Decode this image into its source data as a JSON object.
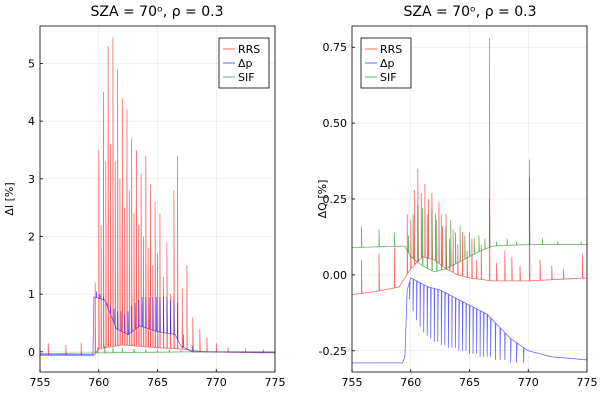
{
  "chart_data": [
    {
      "type": "line",
      "title": "SZA = 70ᵒ, ρ = 0.3",
      "xlabel": "",
      "ylabel": "ΔI [%]",
      "xlim": [
        755,
        775
      ],
      "ylim": [
        -0.35,
        5.65
      ],
      "xticks": [
        "755",
        "760",
        "765",
        "770",
        "775"
      ],
      "yticks": [
        "0",
        "1",
        "2",
        "3",
        "4",
        "5"
      ],
      "legend_position": "top-right",
      "series": [
        {
          "name": "RRS",
          "color": "#ff0000",
          "baseline": [
            [
              755,
              -0.06
            ],
            [
              759.6,
              -0.06
            ],
            [
              760,
              0.05
            ],
            [
              762,
              0.12
            ],
            [
              765,
              0.07
            ],
            [
              767,
              0.05
            ],
            [
              769,
              0.0
            ],
            [
              775,
              -0.02
            ]
          ],
          "peaks": [
            [
              755.7,
              0.15
            ],
            [
              757.2,
              0.12
            ],
            [
              758.5,
              0.16
            ],
            [
              759.7,
              1.2
            ],
            [
              760.0,
              3.5
            ],
            [
              760.2,
              2.2
            ],
            [
              760.4,
              4.5
            ],
            [
              760.6,
              3.3
            ],
            [
              760.8,
              5.3
            ],
            [
              761.0,
              3.6
            ],
            [
              761.2,
              5.45
            ],
            [
              761.4,
              3.3
            ],
            [
              761.6,
              4.9
            ],
            [
              761.8,
              3.0
            ],
            [
              762.0,
              4.4
            ],
            [
              762.2,
              2.5
            ],
            [
              762.4,
              4.2
            ],
            [
              762.6,
              2.8
            ],
            [
              762.8,
              3.7
            ],
            [
              763.0,
              2.4
            ],
            [
              763.2,
              3.5
            ],
            [
              763.4,
              2.2
            ],
            [
              763.6,
              3.1
            ],
            [
              763.8,
              2.0
            ],
            [
              764.0,
              3.4
            ],
            [
              764.2,
              1.8
            ],
            [
              764.4,
              2.9
            ],
            [
              764.6,
              1.5
            ],
            [
              764.8,
              2.6
            ],
            [
              765.0,
              1.7
            ],
            [
              765.2,
              2.4
            ],
            [
              765.5,
              1.3
            ],
            [
              765.8,
              1.9
            ],
            [
              766.1,
              1.0
            ],
            [
              766.4,
              2.8
            ],
            [
              766.7,
              3.4
            ],
            [
              767.1,
              1.1
            ],
            [
              767.5,
              1.5
            ],
            [
              768.0,
              0.6
            ],
            [
              768.6,
              0.4
            ],
            [
              769.2,
              0.25
            ],
            [
              770.0,
              0.15
            ],
            [
              771.0,
              0.08
            ],
            [
              772.5,
              0.05
            ],
            [
              774.0,
              0.04
            ]
          ]
        },
        {
          "name": "Δp",
          "color": "#0000ff",
          "baseline": [
            [
              755,
              -0.05
            ],
            [
              759.5,
              -0.05
            ],
            [
              759.6,
              0.95
            ],
            [
              760.5,
              0.9
            ],
            [
              761.5,
              0.4
            ],
            [
              762.5,
              0.3
            ],
            [
              763.5,
              0.45
            ],
            [
              765,
              0.35
            ],
            [
              766.5,
              0.3
            ],
            [
              767.0,
              0.1
            ],
            [
              768,
              0.0
            ],
            [
              775,
              -0.01
            ]
          ],
          "peaks": [
            [
              759.8,
              1.05
            ],
            [
              760.1,
              1.0
            ],
            [
              760.4,
              0.95
            ],
            [
              760.7,
              0.85
            ],
            [
              761.0,
              0.8
            ],
            [
              761.3,
              0.75
            ],
            [
              761.6,
              0.7
            ],
            [
              761.9,
              0.7
            ],
            [
              762.2,
              0.65
            ],
            [
              762.5,
              0.7
            ],
            [
              762.8,
              0.8
            ],
            [
              763.1,
              0.85
            ],
            [
              763.4,
              0.9
            ],
            [
              763.7,
              0.95
            ],
            [
              764.0,
              0.95
            ],
            [
              764.3,
              0.95
            ],
            [
              764.6,
              0.95
            ],
            [
              764.9,
              0.95
            ],
            [
              765.2,
              0.95
            ],
            [
              765.5,
              0.95
            ],
            [
              765.8,
              0.95
            ],
            [
              766.1,
              0.9
            ],
            [
              766.4,
              0.9
            ],
            [
              766.7,
              0.85
            ],
            [
              767.2,
              0.3
            ],
            [
              768.0,
              0.1
            ]
          ]
        },
        {
          "name": "SIF",
          "color": "#008000",
          "baseline": [
            [
              755,
              -0.03
            ],
            [
              759.5,
              -0.02
            ],
            [
              768,
              0.0
            ],
            [
              775,
              0.0
            ]
          ],
          "peaks": [
            [
              759.9,
              0.08
            ],
            [
              760.5,
              0.1
            ],
            [
              761.2,
              0.08
            ],
            [
              762.0,
              0.07
            ],
            [
              763.0,
              0.05
            ],
            [
              764.0,
              0.05
            ],
            [
              765.0,
              0.04
            ],
            [
              766.0,
              0.04
            ],
            [
              767.0,
              0.03
            ]
          ]
        }
      ]
    },
    {
      "type": "line",
      "title": "SZA = 70ᵒ, ρ = 0.3",
      "xlabel": "",
      "ylabel": "ΔQ [%]",
      "xlim": [
        755,
        775
      ],
      "ylim": [
        -0.32,
        0.82
      ],
      "xticks": [
        "755",
        "760",
        "765",
        "770",
        "775"
      ],
      "yticks": [
        "-0.25",
        "0.00",
        "0.25",
        "0.50",
        "0.75"
      ],
      "legend_position": "top-left",
      "series": [
        {
          "name": "RRS",
          "color": "#ff0000",
          "baseline": [
            [
              755,
              -0.065
            ],
            [
              757,
              -0.055
            ],
            [
              759,
              -0.04
            ],
            [
              760,
              0.02
            ],
            [
              761,
              0.06
            ],
            [
              762,
              0.05
            ],
            [
              763,
              0.02
            ],
            [
              764,
              0.0
            ],
            [
              765,
              -0.01
            ],
            [
              767,
              -0.02
            ],
            [
              770,
              -0.02
            ],
            [
              775,
              -0.01
            ]
          ],
          "peaks": [
            [
              755.8,
              0.05
            ],
            [
              757.3,
              0.07
            ],
            [
              758.6,
              0.09
            ],
            [
              759.7,
              0.2
            ],
            [
              760.0,
              0.18
            ],
            [
              760.3,
              0.28
            ],
            [
              760.6,
              0.35
            ],
            [
              760.9,
              0.27
            ],
            [
              761.2,
              0.3
            ],
            [
              761.5,
              0.25
            ],
            [
              761.8,
              0.27
            ],
            [
              762.1,
              0.2
            ],
            [
              762.4,
              0.24
            ],
            [
              762.7,
              0.16
            ],
            [
              763.0,
              0.2
            ],
            [
              763.3,
              0.12
            ],
            [
              763.6,
              0.15
            ],
            [
              764.0,
              0.1
            ],
            [
              764.4,
              0.14
            ],
            [
              764.8,
              0.08
            ],
            [
              765.2,
              0.12
            ],
            [
              765.6,
              0.05
            ],
            [
              766.0,
              0.1
            ],
            [
              766.7,
              0.78
            ],
            [
              767.3,
              0.04
            ],
            [
              768.0,
              0.08
            ],
            [
              768.6,
              0.06
            ],
            [
              769.3,
              0.03
            ],
            [
              770.1,
              0.32
            ],
            [
              771.0,
              0.05
            ],
            [
              772.0,
              0.03
            ],
            [
              773.0,
              0.02
            ],
            [
              774.6,
              0.07
            ]
          ]
        },
        {
          "name": "Δp",
          "color": "#0000ff",
          "baseline": [
            [
              755,
              -0.29
            ],
            [
              759.3,
              -0.29
            ],
            [
              759.5,
              -0.27
            ],
            [
              759.7,
              -0.05
            ],
            [
              760.0,
              -0.01
            ],
            [
              760.5,
              -0.02
            ],
            [
              761.5,
              -0.04
            ],
            [
              762.5,
              -0.05
            ],
            [
              763.5,
              -0.07
            ],
            [
              764.5,
              -0.09
            ],
            [
              765.5,
              -0.11
            ],
            [
              766.5,
              -0.13
            ],
            [
              767.5,
              -0.17
            ],
            [
              768.5,
              -0.21
            ],
            [
              770,
              -0.25
            ],
            [
              772,
              -0.27
            ],
            [
              775,
              -0.28
            ]
          ],
          "peaks": [
            [
              759.9,
              -0.08
            ],
            [
              760.2,
              -0.12
            ],
            [
              760.5,
              -0.15
            ],
            [
              760.8,
              -0.17
            ],
            [
              761.1,
              -0.19
            ],
            [
              761.4,
              -0.2
            ],
            [
              761.7,
              -0.21
            ],
            [
              762.0,
              -0.22
            ],
            [
              762.3,
              -0.22
            ],
            [
              762.6,
              -0.23
            ],
            [
              762.9,
              -0.23
            ],
            [
              763.2,
              -0.24
            ],
            [
              763.5,
              -0.24
            ],
            [
              763.8,
              -0.24
            ],
            [
              764.1,
              -0.25
            ],
            [
              764.4,
              -0.25
            ],
            [
              764.7,
              -0.25
            ],
            [
              765.0,
              -0.26
            ],
            [
              765.3,
              -0.26
            ],
            [
              765.6,
              -0.26
            ],
            [
              765.9,
              -0.27
            ],
            [
              766.2,
              -0.27
            ],
            [
              766.5,
              -0.27
            ],
            [
              766.8,
              -0.27
            ],
            [
              767.2,
              -0.28
            ],
            [
              767.6,
              -0.28
            ],
            [
              768.0,
              -0.28
            ],
            [
              768.5,
              -0.29
            ],
            [
              769.0,
              -0.29
            ],
            [
              769.6,
              -0.29
            ]
          ]
        },
        {
          "name": "SIF",
          "color": "#008000",
          "baseline": [
            [
              755,
              0.09
            ],
            [
              759.5,
              0.095
            ],
            [
              760,
              0.06
            ],
            [
              761,
              0.03
            ],
            [
              762,
              0.01
            ],
            [
              763,
              0.02
            ],
            [
              764,
              0.04
            ],
            [
              765,
              0.06
            ],
            [
              766,
              0.08
            ],
            [
              767,
              0.095
            ],
            [
              770,
              0.1
            ],
            [
              775,
              0.1
            ]
          ],
          "peaks": [
            [
              755.8,
              0.16
            ],
            [
              757.3,
              0.15
            ],
            [
              758.6,
              0.14
            ],
            [
              759.8,
              0.13
            ],
            [
              760.2,
              0.2
            ],
            [
              760.6,
              0.23
            ],
            [
              761.0,
              0.22
            ],
            [
              761.4,
              0.2
            ],
            [
              761.8,
              0.22
            ],
            [
              762.2,
              0.18
            ],
            [
              762.6,
              0.2
            ],
            [
              763.0,
              0.16
            ],
            [
              763.4,
              0.18
            ],
            [
              763.8,
              0.14
            ],
            [
              764.2,
              0.16
            ],
            [
              764.6,
              0.13
            ],
            [
              765.0,
              0.14
            ],
            [
              765.4,
              0.12
            ],
            [
              765.8,
              0.13
            ],
            [
              766.3,
              0.12
            ],
            [
              766.7,
              0.25
            ],
            [
              767.3,
              0.11
            ],
            [
              768.2,
              0.12
            ],
            [
              769.0,
              0.11
            ],
            [
              770.1,
              0.38
            ],
            [
              771.2,
              0.12
            ],
            [
              772.5,
              0.11
            ],
            [
              774.5,
              0.11
            ]
          ]
        }
      ]
    }
  ]
}
